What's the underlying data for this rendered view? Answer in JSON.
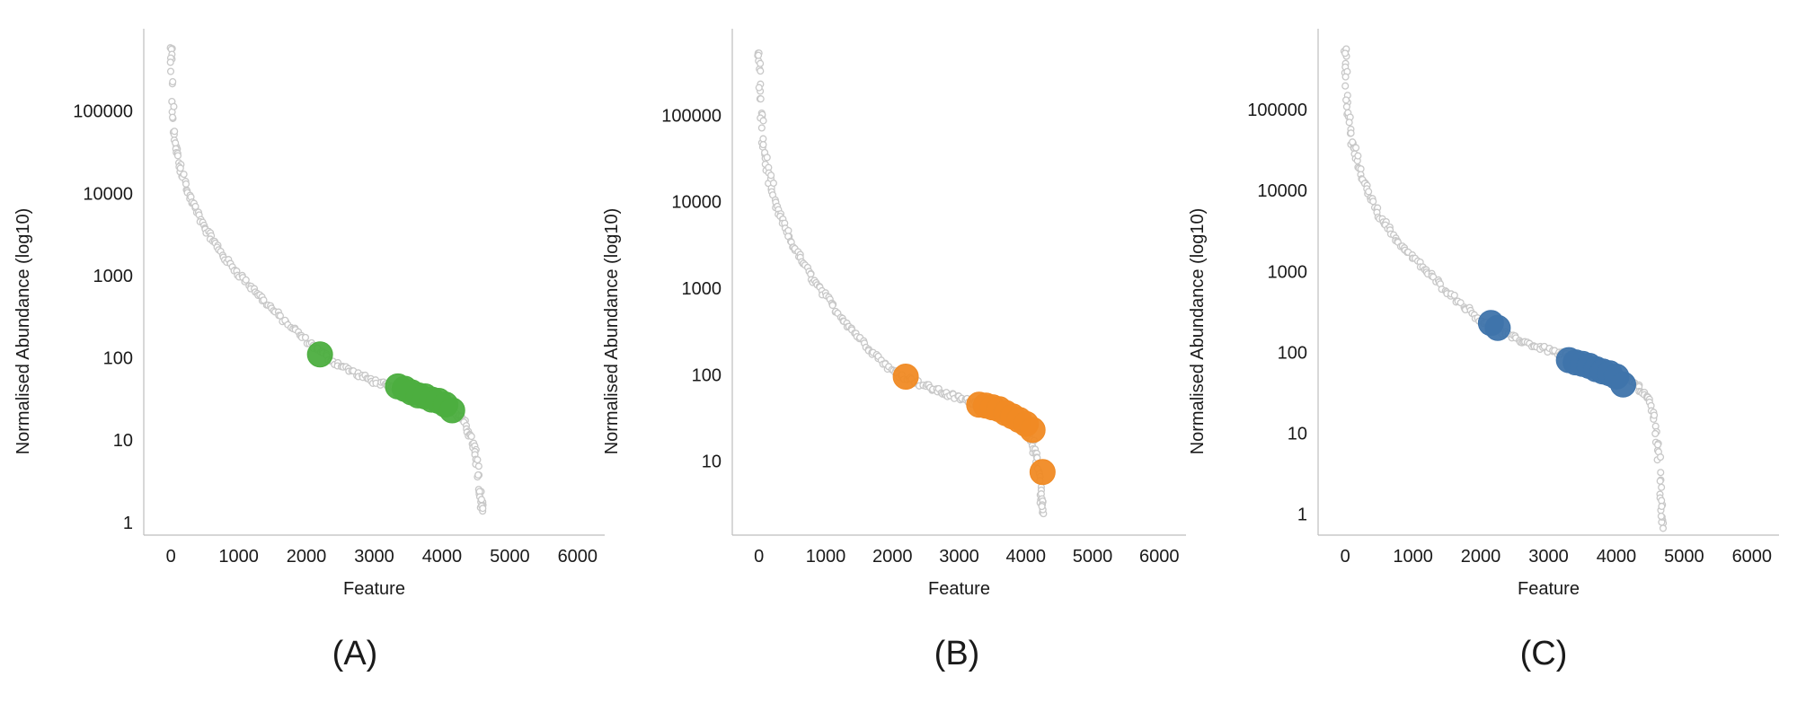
{
  "figure": {
    "panels": [
      {
        "caption": "(A)",
        "accent": "#4cae3f"
      },
      {
        "caption": "(B)",
        "accent": "#f08a24"
      },
      {
        "caption": "(C)",
        "accent": "#3f74ab"
      }
    ]
  },
  "chart_data": [
    {
      "type": "scatter",
      "caption": "(A)",
      "xlabel": "Feature",
      "ylabel": "Normalised Abundance (log10)",
      "yscale": "log",
      "xlim": [
        -400,
        6400
      ],
      "ylim": [
        0.7,
        1000000
      ],
      "xticks": [
        0,
        1000,
        2000,
        3000,
        4000,
        5000,
        6000
      ],
      "yticks": [
        1,
        10,
        100,
        1000,
        10000,
        100000
      ],
      "ytick_labels": [
        "1",
        "10",
        "100",
        "1000",
        "10000",
        "100000"
      ],
      "grid": false,
      "n_features": 4590,
      "series": [
        {
          "role": "all-features",
          "color": "#c8c8c8",
          "curve_x": [
            0,
            20,
            60,
            120,
            250,
            500,
            800,
            1200,
            1600,
            2000,
            2400,
            2800,
            3200,
            3600,
            4000,
            4300,
            4450,
            4520,
            4560,
            4590
          ],
          "curve_y": [
            550000,
            120000,
            40000,
            25000,
            10000,
            3800,
            1600,
            700,
            320,
            160,
            90,
            60,
            45,
            35,
            26,
            18,
            10,
            5,
            2.5,
            1.6
          ]
        },
        {
          "role": "highlighted",
          "color": "#4cae3f",
          "x": [
            2200,
            3350,
            3450,
            3550,
            3650,
            3750,
            3850,
            3950,
            4050,
            4150
          ],
          "y": [
            110,
            45,
            42,
            38,
            35,
            34,
            31,
            30,
            27,
            23
          ]
        }
      ]
    },
    {
      "type": "scatter",
      "caption": "(B)",
      "xlabel": "Feature",
      "ylabel": "Normalised Abundance (log10)",
      "yscale": "log",
      "xlim": [
        -400,
        6400
      ],
      "ylim": [
        1.4,
        1000000
      ],
      "xticks": [
        0,
        1000,
        2000,
        3000,
        4000,
        5000,
        6000
      ],
      "yticks": [
        10,
        100,
        1000,
        10000,
        100000
      ],
      "ytick_labels": [
        "10",
        "100",
        "1000",
        "10000",
        "100000"
      ],
      "grid": false,
      "n_features": 4250,
      "series": [
        {
          "role": "all-features",
          "color": "#c8c8c8",
          "curve_x": [
            0,
            20,
            60,
            120,
            250,
            500,
            800,
            1200,
            1600,
            2000,
            2400,
            2800,
            3200,
            3600,
            3900,
            4050,
            4150,
            4200,
            4230,
            4250
          ],
          "curve_y": [
            500000,
            140000,
            50000,
            25000,
            9000,
            3200,
            1300,
            500,
            220,
            110,
            80,
            60,
            48,
            38,
            28,
            20,
            12,
            7,
            4,
            2.8
          ]
        },
        {
          "role": "highlighted",
          "color": "#f08a24",
          "x": [
            2200,
            3300,
            3400,
            3500,
            3600,
            3700,
            3800,
            3900,
            4000,
            4100,
            4250
          ],
          "y": [
            95,
            45,
            44,
            42,
            40,
            36,
            33,
            30,
            27,
            23,
            7.5
          ]
        }
      ]
    },
    {
      "type": "scatter",
      "caption": "(C)",
      "xlabel": "Feature",
      "ylabel": "Normalised Abundance (log10)",
      "yscale": "log",
      "xlim": [
        -400,
        6400
      ],
      "ylim": [
        0.55,
        1000000
      ],
      "xticks": [
        0,
        1000,
        2000,
        3000,
        4000,
        5000,
        6000
      ],
      "yticks": [
        1,
        10,
        100,
        1000,
        10000,
        100000
      ],
      "ytick_labels": [
        "1",
        "10",
        "100",
        "1000",
        "10000",
        "100000"
      ],
      "grid": false,
      "n_features": 4680,
      "series": [
        {
          "role": "all-features",
          "color": "#c8c8c8",
          "curve_x": [
            0,
            20,
            60,
            120,
            250,
            500,
            800,
            1200,
            1600,
            2000,
            2400,
            2800,
            3200,
            3600,
            4000,
            4300,
            4500,
            4580,
            4630,
            4660,
            4680
          ],
          "curve_y": [
            620000,
            150000,
            60000,
            35000,
            14000,
            5000,
            2200,
            1000,
            480,
            250,
            160,
            120,
            95,
            75,
            55,
            40,
            25,
            12,
            5,
            2,
            0.8
          ]
        },
        {
          "role": "highlighted",
          "color": "#3f74ab",
          "x": [
            2150,
            2250,
            3300,
            3400,
            3500,
            3600,
            3700,
            3800,
            3900,
            4000,
            4100
          ],
          "y": [
            230,
            200,
            80,
            75,
            72,
            68,
            62,
            58,
            55,
            50,
            40
          ]
        }
      ]
    }
  ]
}
